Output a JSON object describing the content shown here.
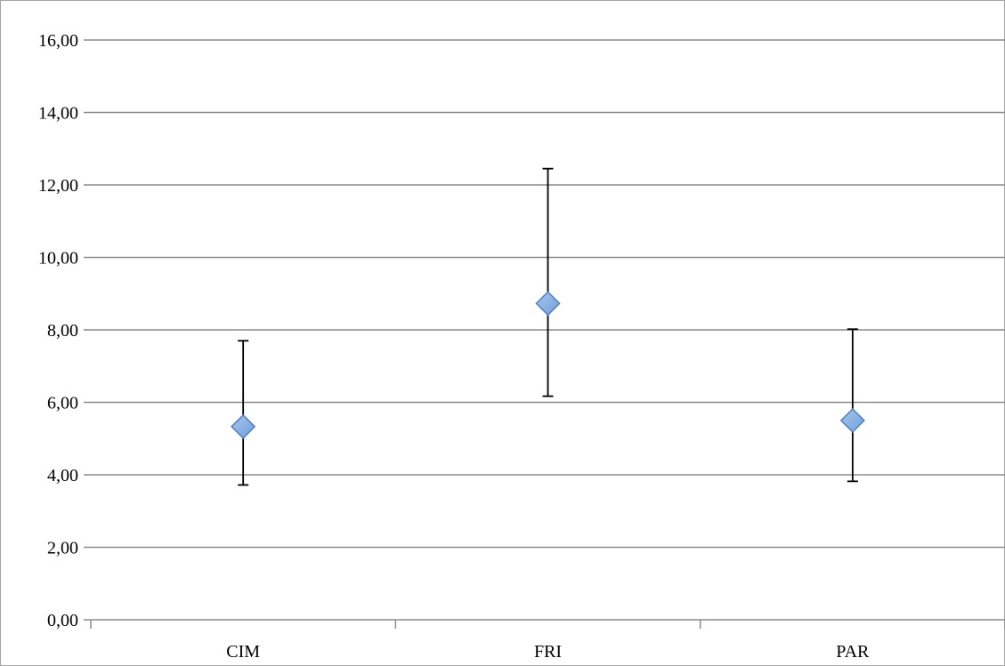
{
  "chart_data": {
    "type": "scatter",
    "title": "",
    "xlabel": "",
    "ylabel": "",
    "categories": [
      "CIM",
      "FRI",
      "PAR"
    ],
    "series": [
      {
        "values": [
          5.33,
          8.73,
          5.5
        ],
        "error_low": [
          3.72,
          6.17,
          3.82
        ],
        "error_high": [
          7.7,
          12.45,
          8.02
        ]
      }
    ],
    "ylim": [
      0,
      16
    ],
    "y_ticks": [
      "0,00",
      "2,00",
      "4,00",
      "6,00",
      "8,00",
      "10,00",
      "12,00",
      "14,00",
      "16,00"
    ],
    "y_tick_values": [
      0,
      2,
      4,
      6,
      8,
      10,
      12,
      14,
      16
    ],
    "grid": true,
    "legend": "none",
    "marker": "diamond",
    "colors": {
      "marker_fill": "#6f9fdc",
      "marker_fill_light": "#a9c6ef",
      "marker_stroke": "#4f7fbf",
      "error_bar": "#000000",
      "grid": "#8c8c8c"
    }
  }
}
